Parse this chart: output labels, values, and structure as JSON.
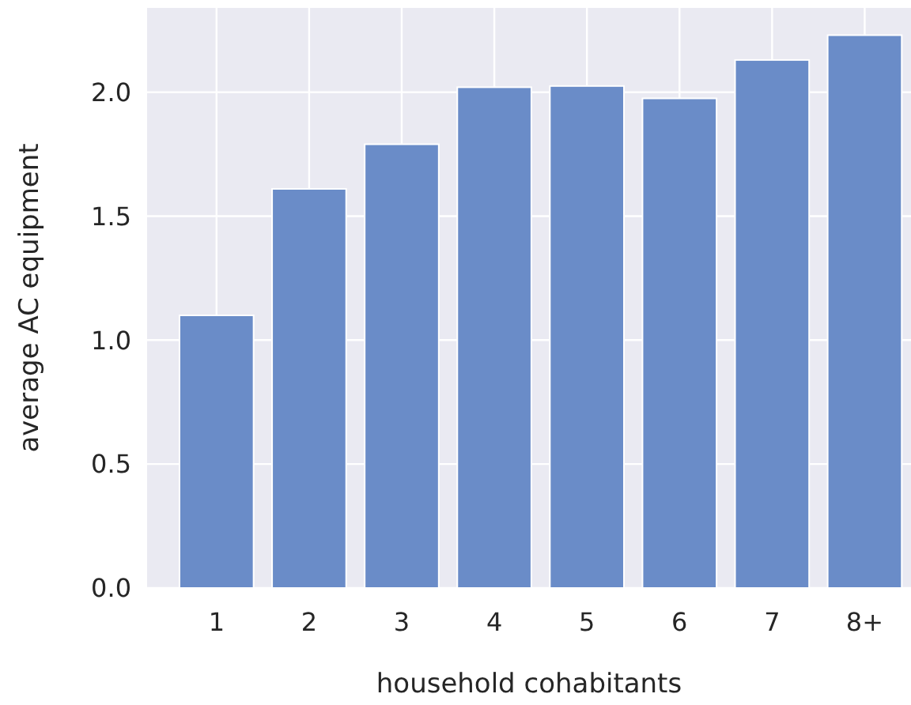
{
  "chart_data": {
    "type": "bar",
    "xlabel": "household cohabitants",
    "ylabel": "average AC equipment",
    "categories": [
      "1",
      "2",
      "3",
      "4",
      "5",
      "6",
      "7",
      "8+"
    ],
    "values": [
      1.1,
      1.61,
      1.79,
      2.02,
      2.025,
      1.975,
      2.13,
      2.23
    ],
    "color": "#6a8cc8",
    "ylim": [
      0,
      2.34
    ],
    "yticks": [
      {
        "value": 0,
        "label": "0.0"
      },
      {
        "value": 0.5,
        "label": "0.5"
      },
      {
        "value": 1,
        "label": "1.0"
      },
      {
        "value": 1.5,
        "label": "1.5"
      },
      {
        "value": 2,
        "label": "2.0"
      }
    ],
    "grid": true
  }
}
